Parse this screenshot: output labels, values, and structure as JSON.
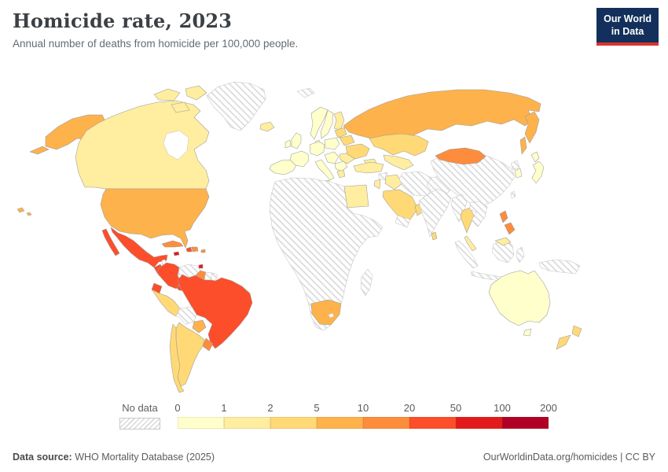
{
  "header": {
    "title": "Homicide rate, 2023",
    "subtitle": "Annual number of deaths from homicide per 100,000 people."
  },
  "logo": {
    "line1": "Our World",
    "line2": "in Data",
    "bg_color": "#12305b",
    "accent_color": "#d8352f"
  },
  "legend": {
    "no_data_label": "No data",
    "ticks": [
      "0",
      "1",
      "2",
      "5",
      "10",
      "20",
      "50",
      "100",
      "200"
    ]
  },
  "footer": {
    "source_label": "Data source:",
    "source_value": " WHO Mortality Database (2025)",
    "right_text": "OurWorldinData.org/homicides | CC BY"
  },
  "chart_data": {
    "type": "heatmap",
    "subtype": "choropleth_world_map",
    "title": "Homicide rate, 2023",
    "unit": "deaths from homicide per 100,000 people",
    "legend_position": "bottom",
    "no_data_style": "hatched",
    "bins": [
      {
        "range": "0-1",
        "color": "#FFFFCC"
      },
      {
        "range": "1-2",
        "color": "#FFEDA0"
      },
      {
        "range": "2-5",
        "color": "#FED976"
      },
      {
        "range": "5-10",
        "color": "#FEB24C"
      },
      {
        "range": "10-20",
        "color": "#FD8D3C"
      },
      {
        "range": "20-50",
        "color": "#FC4E2A"
      },
      {
        "range": "50-100",
        "color": "#E31A1C"
      },
      {
        "range": "100-200",
        "color": "#B10026"
      }
    ],
    "countries": [
      {
        "id": "united-states",
        "name": "United States",
        "bin": "5-10"
      },
      {
        "id": "canada",
        "name": "Canada",
        "bin": "1-2"
      },
      {
        "id": "greenland",
        "name": "Greenland",
        "bin": "no-data"
      },
      {
        "id": "iceland",
        "name": "Iceland",
        "bin": "1-2"
      },
      {
        "id": "mexico",
        "name": "Mexico",
        "bin": "20-50"
      },
      {
        "id": "belize",
        "name": "Belize",
        "bin": "no-data"
      },
      {
        "id": "guatemala",
        "name": "Guatemala",
        "bin": "20-50"
      },
      {
        "id": "el-salvador",
        "name": "El Salvador",
        "bin": "20-50"
      },
      {
        "id": "honduras",
        "name": "Honduras",
        "bin": "10-20"
      },
      {
        "id": "nicaragua",
        "name": "Nicaragua",
        "bin": "2-5"
      },
      {
        "id": "costa-rica",
        "name": "Costa Rica",
        "bin": "10-20"
      },
      {
        "id": "panama",
        "name": "Panama",
        "bin": "20-50"
      },
      {
        "id": "cuba",
        "name": "Cuba",
        "bin": "10-20"
      },
      {
        "id": "jamaica",
        "name": "Jamaica",
        "bin": "50-100"
      },
      {
        "id": "haiti",
        "name": "Haiti",
        "bin": "20-50"
      },
      {
        "id": "dominican-republic",
        "name": "Dominican Republic",
        "bin": "10-20"
      },
      {
        "id": "puerto-rico",
        "name": "Puerto Rico",
        "bin": "10-20"
      },
      {
        "id": "trinidad-and-tobago",
        "name": "Trinidad and Tobago",
        "bin": "50-100"
      },
      {
        "id": "colombia",
        "name": "Colombia",
        "bin": "20-50"
      },
      {
        "id": "venezuela",
        "name": "Venezuela",
        "bin": "no-data"
      },
      {
        "id": "guyana",
        "name": "Guyana",
        "bin": "10-20"
      },
      {
        "id": "suriname",
        "name": "Suriname",
        "bin": "no-data"
      },
      {
        "id": "french-guiana",
        "name": "French Guiana",
        "bin": "no-data"
      },
      {
        "id": "ecuador",
        "name": "Ecuador",
        "bin": "20-50"
      },
      {
        "id": "peru",
        "name": "Peru",
        "bin": "2-5"
      },
      {
        "id": "brazil",
        "name": "Brazil",
        "bin": "20-50"
      },
      {
        "id": "bolivia",
        "name": "Bolivia",
        "bin": "no-data"
      },
      {
        "id": "paraguay",
        "name": "Paraguay",
        "bin": "5-10"
      },
      {
        "id": "uruguay",
        "name": "Uruguay",
        "bin": "10-20"
      },
      {
        "id": "argentina",
        "name": "Argentina",
        "bin": "2-5"
      },
      {
        "id": "chile",
        "name": "Chile",
        "bin": "2-5"
      },
      {
        "id": "united-kingdom",
        "name": "United Kingdom",
        "bin": "0-1"
      },
      {
        "id": "ireland",
        "name": "Ireland",
        "bin": "0-1"
      },
      {
        "id": "france",
        "name": "France",
        "bin": "0-1"
      },
      {
        "id": "iberia",
        "name": "Spain & Portugal",
        "bin": "0-1"
      },
      {
        "id": "central-europe",
        "name": "Central Europe (Germany, Benelux, Czechia)",
        "bin": "0-1"
      },
      {
        "id": "poland",
        "name": "Poland",
        "bin": "0-1"
      },
      {
        "id": "italy",
        "name": "Italy",
        "bin": "0-1"
      },
      {
        "id": "balkans",
        "name": "Balkans (Austria–Hungary–Croatia–Serbia)",
        "bin": "0-1"
      },
      {
        "id": "greece",
        "name": "Greece",
        "bin": "1-2"
      },
      {
        "id": "romania",
        "name": "Romania",
        "bin": "1-2"
      },
      {
        "id": "norway",
        "name": "Norway",
        "bin": "0-1"
      },
      {
        "id": "sweden",
        "name": "Sweden",
        "bin": "0-1"
      },
      {
        "id": "finland",
        "name": "Finland",
        "bin": "1-2"
      },
      {
        "id": "denmark",
        "name": "Denmark",
        "bin": "0-1"
      },
      {
        "id": "baltic-states",
        "name": "Baltic states",
        "bin": "2-5"
      },
      {
        "id": "belarus",
        "name": "Belarus",
        "bin": "2-5"
      },
      {
        "id": "ukraine",
        "name": "Ukraine",
        "bin": "2-5"
      },
      {
        "id": "russia",
        "name": "Russia",
        "bin": "5-10"
      },
      {
        "id": "kazakhstan",
        "name": "Kazakhstan",
        "bin": "2-5"
      },
      {
        "id": "central-asia",
        "name": "Central Asia (Uzbekistan, Turkmenistan)",
        "bin": "1-2"
      },
      {
        "id": "caucasus",
        "name": "Caucasus",
        "bin": "1-2"
      },
      {
        "id": "turkey",
        "name": "Turkey",
        "bin": "1-2"
      },
      {
        "id": "syria",
        "name": "Syria",
        "bin": "no-data"
      },
      {
        "id": "israel-jordan",
        "name": "Israel & Jordan",
        "bin": "1-2"
      },
      {
        "id": "iraq",
        "name": "Iraq",
        "bin": "1-2"
      },
      {
        "id": "iran",
        "name": "Iran",
        "bin": "no-data"
      },
      {
        "id": "saudi-arabia",
        "name": "Saudi Arabia",
        "bin": "2-5"
      },
      {
        "id": "yemen",
        "name": "Yemen",
        "bin": "no-data"
      },
      {
        "id": "oman",
        "name": "Oman",
        "bin": "2-5"
      },
      {
        "id": "egypt",
        "name": "Egypt",
        "bin": "1-2"
      },
      {
        "id": "africa-other",
        "name": "Africa (most countries)",
        "bin": "no-data"
      },
      {
        "id": "south-africa",
        "name": "South Africa",
        "bin": "5-10"
      },
      {
        "id": "madagascar",
        "name": "Madagascar",
        "bin": "no-data"
      },
      {
        "id": "afghanistan-pakistan",
        "name": "Afghanistan & Pakistan",
        "bin": "no-data"
      },
      {
        "id": "india",
        "name": "India",
        "bin": "no-data"
      },
      {
        "id": "sri-lanka",
        "name": "Sri Lanka",
        "bin": "2-5"
      },
      {
        "id": "china",
        "name": "China",
        "bin": "no-data"
      },
      {
        "id": "mongolia",
        "name": "Mongolia",
        "bin": "10-20"
      },
      {
        "id": "north-korea",
        "name": "North Korea",
        "bin": "no-data"
      },
      {
        "id": "south-korea",
        "name": "South Korea",
        "bin": "0-1"
      },
      {
        "id": "japan",
        "name": "Japan",
        "bin": "0-1"
      },
      {
        "id": "taiwan",
        "name": "Taiwan",
        "bin": "no-data"
      },
      {
        "id": "myanmar",
        "name": "Myanmar",
        "bin": "no-data"
      },
      {
        "id": "thailand",
        "name": "Thailand",
        "bin": "2-5"
      },
      {
        "id": "indochina",
        "name": "Vietnam, Laos & Cambodia",
        "bin": "no-data"
      },
      {
        "id": "malaysia",
        "name": "Malaysia",
        "bin": "1-2"
      },
      {
        "id": "indonesia",
        "name": "Indonesia",
        "bin": "no-data"
      },
      {
        "id": "new-guinea",
        "name": "Papua New Guinea",
        "bin": "no-data"
      },
      {
        "id": "philippines",
        "name": "Philippines",
        "bin": "10-20"
      },
      {
        "id": "australia",
        "name": "Australia",
        "bin": "0-1"
      },
      {
        "id": "new-zealand",
        "name": "New Zealand",
        "bin": "2-5"
      },
      {
        "id": "svalbard",
        "name": "Svalbard",
        "bin": "no-data"
      }
    ]
  }
}
